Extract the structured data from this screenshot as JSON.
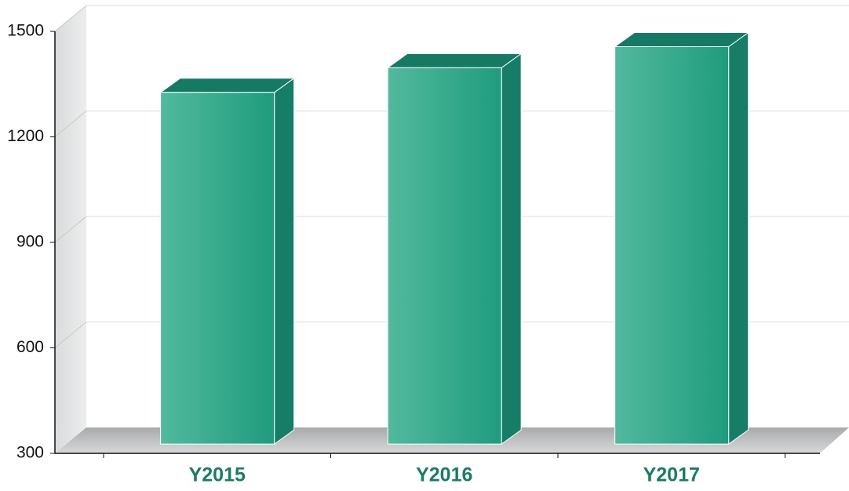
{
  "chart_data": {
    "type": "bar3d",
    "categories": [
      "Y2015",
      "Y2016",
      "Y2017"
    ],
    "values": [
      1300,
      1370,
      1430
    ],
    "color": "#2aa585",
    "ylim": [
      300,
      1500
    ],
    "yticks": [
      300,
      600,
      900,
      1200,
      1500
    ],
    "grid": true
  }
}
